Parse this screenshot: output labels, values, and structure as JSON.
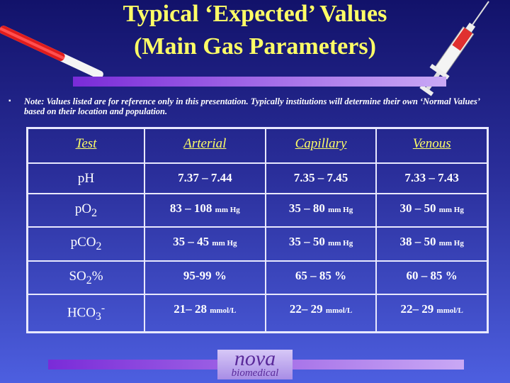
{
  "header": {
    "title_lines": [
      "Typical ‘Expected’ Values",
      "(Main Gas Parameters)"
    ]
  },
  "note": {
    "bullet": "▪",
    "text": "Note:  Values listed are for reference only in this presentation. Typically institutions will determine their own ‘Normal Values’ based on their location and population."
  },
  "table": {
    "columns": [
      "Test",
      "Arterial",
      "Capillary",
      "Venous"
    ],
    "rows": [
      {
        "test": {
          "base": "pH"
        },
        "cells": [
          {
            "value": "7.37 – 7.44"
          },
          {
            "value": "7.35 – 7.45"
          },
          {
            "value": "7.33 – 7.43"
          }
        ]
      },
      {
        "test": {
          "base": "pO",
          "sub": "2"
        },
        "cells": [
          {
            "value": "83 – 108",
            "unit": "mm Hg"
          },
          {
            "value": "35 – 80",
            "unit": "mm Hg"
          },
          {
            "value": "30 – 50",
            "unit": "mm Hg"
          }
        ]
      },
      {
        "test": {
          "base": "pCO",
          "sub": "2"
        },
        "cells": [
          {
            "value": "35 – 45",
            "unit": "mm Hg"
          },
          {
            "value": "35 – 50",
            "unit": "mm Hg"
          },
          {
            "value": "38 – 50",
            "unit": "mm Hg"
          }
        ]
      },
      {
        "test": {
          "base": "SO",
          "sub": "2",
          "suffix": "%"
        },
        "cells": [
          {
            "value": "95-99 %"
          },
          {
            "value": "65 – 85 %"
          },
          {
            "value": "60 – 85 %"
          }
        ]
      },
      {
        "test": {
          "base": "HCO",
          "sub": "3",
          "sup": "-"
        },
        "cells": [
          {
            "value": "21– 28",
            "unit": "mmol/L"
          },
          {
            "value": "22– 29",
            "unit": "mmol/L"
          },
          {
            "value": "22– 29",
            "unit": "mmol/L"
          }
        ]
      }
    ]
  },
  "logo": {
    "line1": "nova",
    "line2": "biomedical"
  }
}
